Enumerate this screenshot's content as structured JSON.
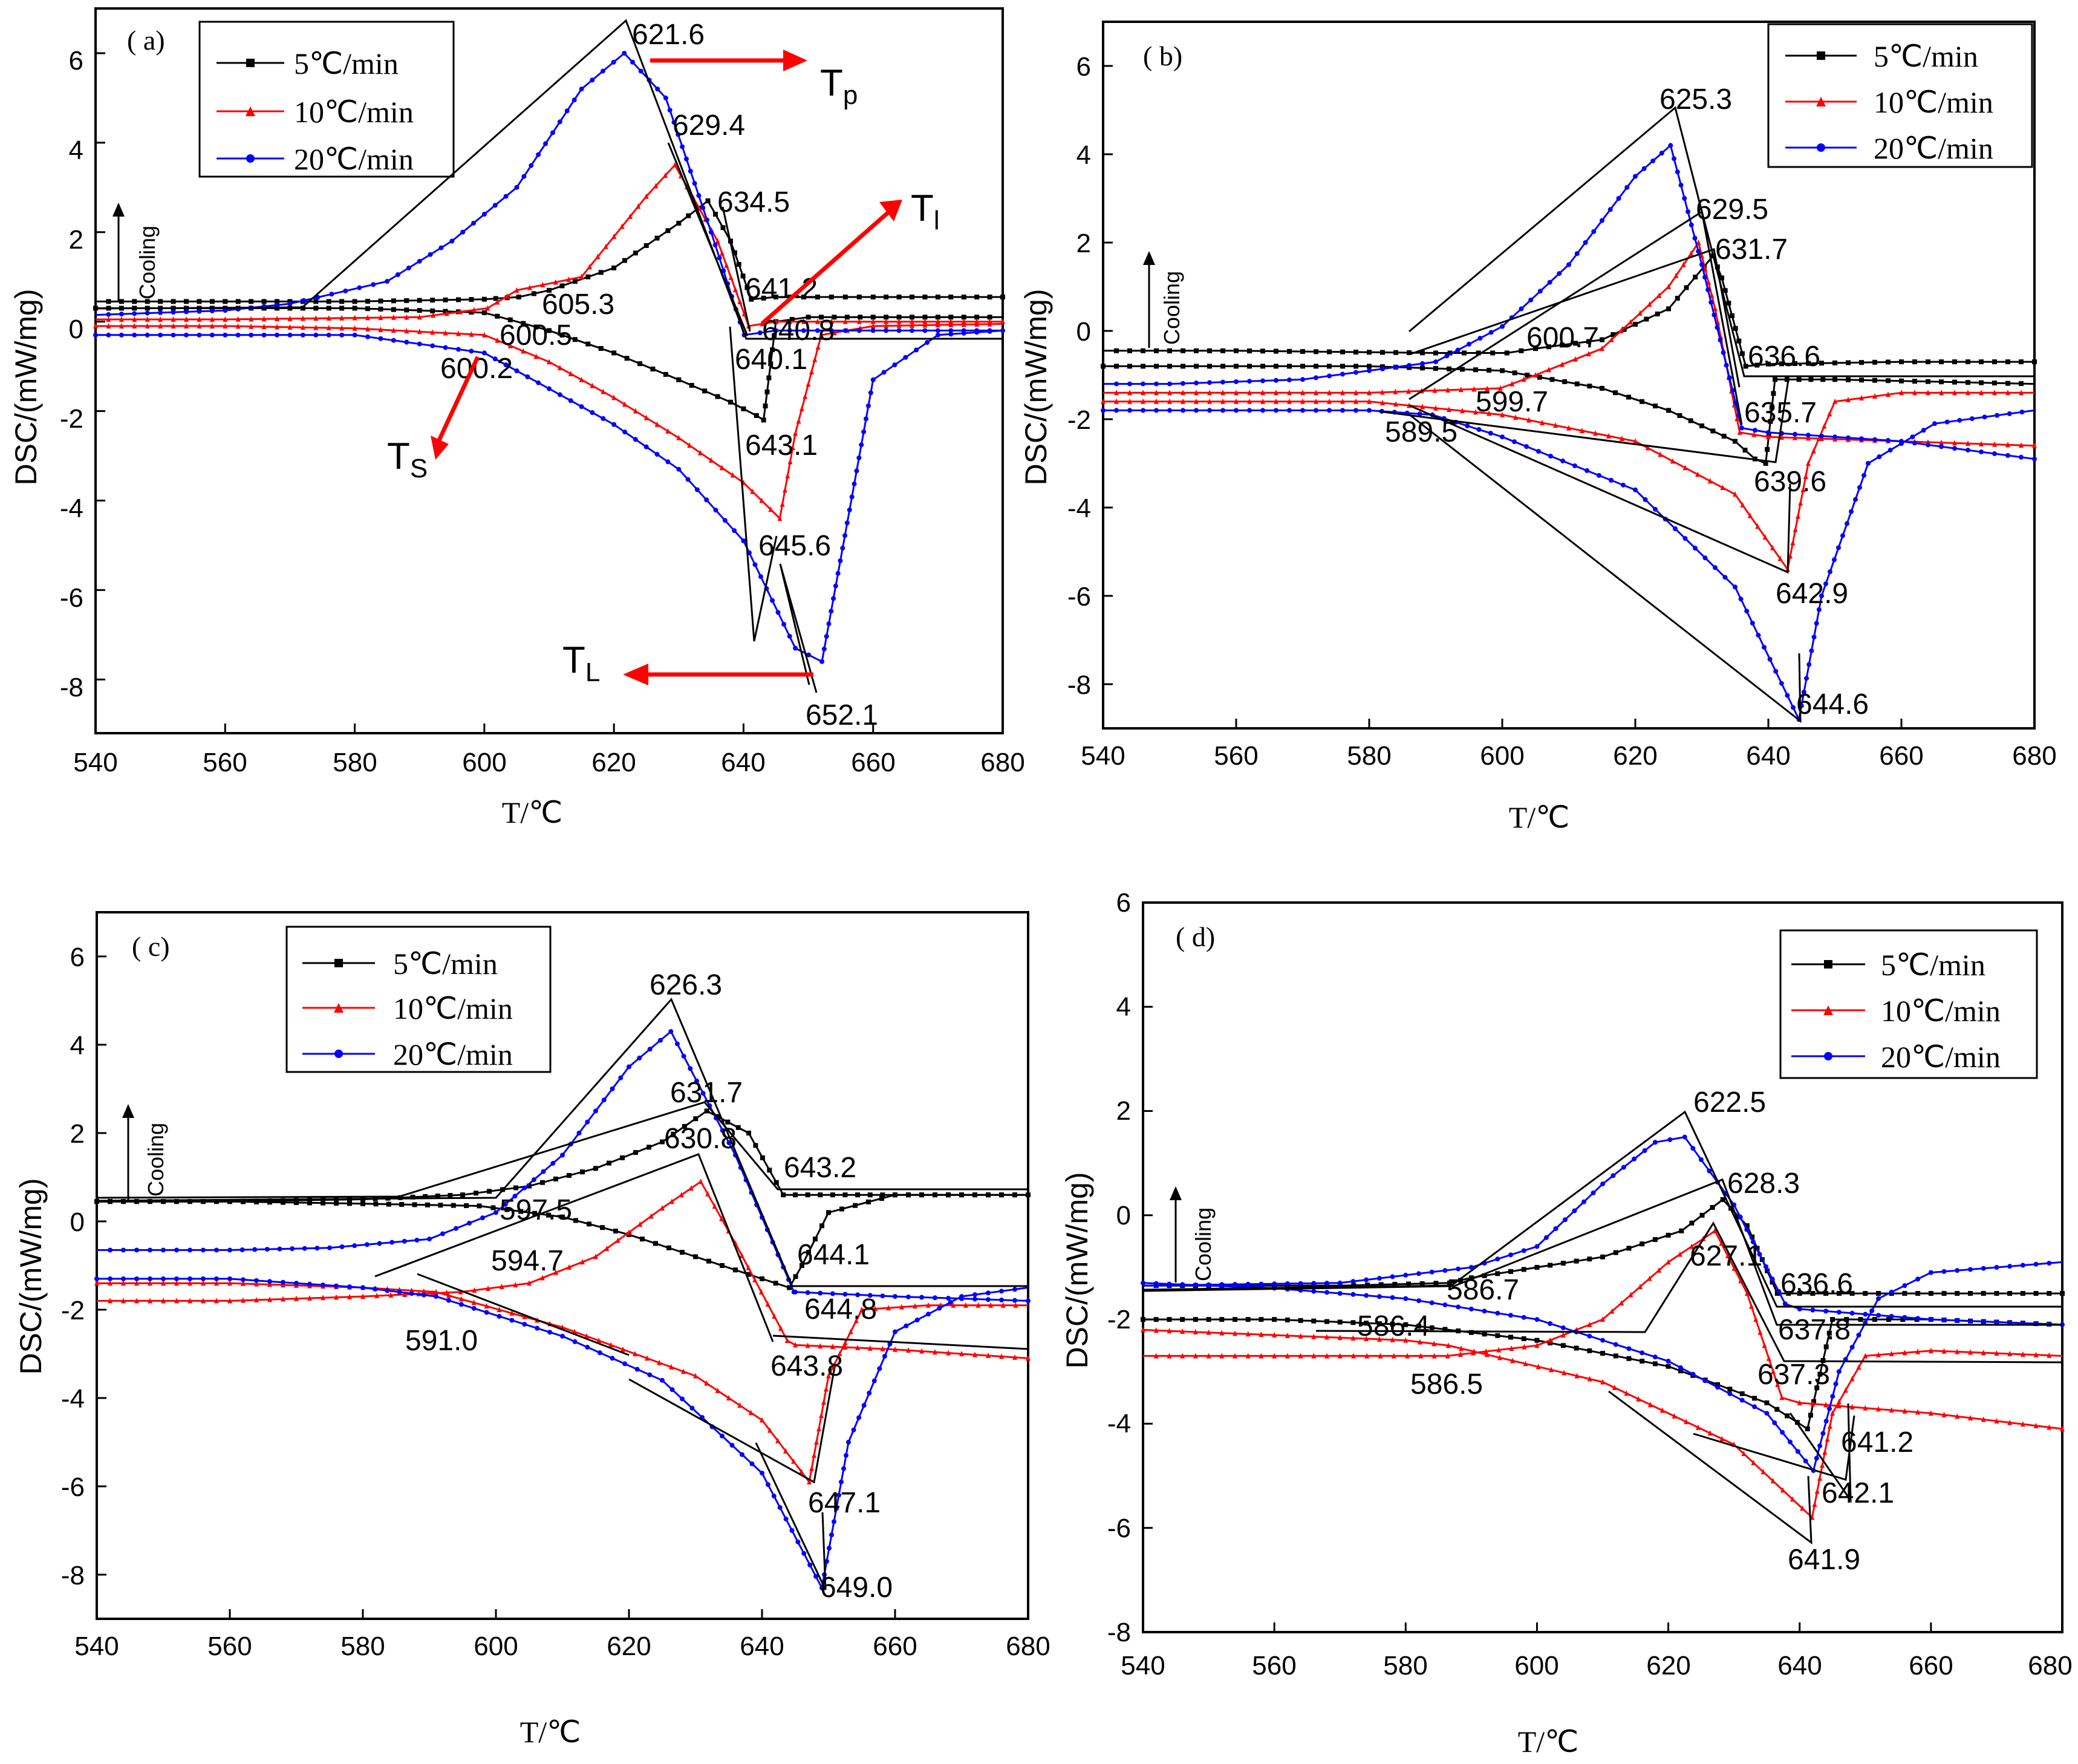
{
  "chart_data": [
    {
      "type": "line",
      "panel_label": "( a)",
      "xlabel": "T/℃",
      "ylabel": "DSC/(mW/mg)",
      "xlim": [
        540,
        680
      ],
      "ylim": [
        -9.2,
        7.0
      ],
      "xticks": [
        540,
        560,
        580,
        600,
        620,
        640,
        660,
        "680"
      ],
      "yticks": [
        -8,
        -6,
        -4,
        -2,
        0,
        2,
        4,
        6
      ],
      "cooling_label": "Cooling",
      "legend": {
        "position": "top-left-inside",
        "entries": [
          "5℃/min",
          "10℃/min",
          "20℃/min"
        ]
      },
      "series": [
        {
          "name": "5℃/min",
          "color": "#000000",
          "marker": "square",
          "heating": {
            "x": [
              540,
              560,
              580,
              600,
              610,
              620,
              630,
              638,
              642,
              643.1,
              645,
              650,
              660,
              680
            ],
            "y": [
              0.3,
              0.3,
              0.3,
              0.2,
              -0.2,
              -0.7,
              -1.3,
              -1.8,
              -2.1,
              -2.2,
              0,
              0.1,
              0.1,
              0.1
            ]
          },
          "cooling": {
            "x": [
              680,
              660,
              645,
              641.2,
              638,
              634.5,
              630,
              620,
              610,
              605.3,
              600,
              580,
              560,
              540
            ],
            "y": [
              0.55,
              0.55,
              0.55,
              0.5,
              1.8,
              2.7,
              2.2,
              1.2,
              0.7,
              0.55,
              0.5,
              0.45,
              0.45,
              0.45
            ]
          }
        },
        {
          "name": "10℃/min",
          "color": "#ff0000",
          "marker": "triangle",
          "heating": {
            "x": [
              540,
              560,
              580,
              600,
              610,
              620,
              630,
              640,
              645.6,
              648,
              652,
              660,
              680
            ],
            "y": [
              -0.1,
              -0.1,
              -0.15,
              -0.3,
              -0.9,
              -1.7,
              -2.6,
              -3.6,
              -4.4,
              -2.5,
              -0.3,
              -0.1,
              -0.05
            ]
          },
          "cooling": {
            "x": [
              680,
              660,
              645,
              640.8,
              636,
              629.4,
              625,
              615,
              605,
              600.5,
              590,
              560,
              540
            ],
            "y": [
              0.0,
              0.0,
              0.0,
              -0.1,
              1.8,
              3.5,
              2.8,
              1.0,
              0.7,
              0.3,
              0.1,
              0.05,
              0.05
            ]
          }
        },
        {
          "name": "20℃/min",
          "color": "#0000ff",
          "marker": "circle",
          "heating": {
            "x": [
              540,
              560,
              580,
              600,
              610,
              620,
              630,
              640,
              648,
              652.1,
              656,
              660,
              670,
              680
            ],
            "y": [
              -0.3,
              -0.3,
              -0.3,
              -0.7,
              -1.5,
              -2.3,
              -3.3,
              -4.9,
              -7.3,
              -7.6,
              -4.5,
              -1.3,
              -0.3,
              -0.2
            ]
          },
          "cooling": {
            "x": [
              680,
              660,
              645,
              640.1,
              635,
              628,
              621.6,
              615,
              605,
              595,
              585,
              570,
              560,
              550,
              540
            ],
            "y": [
              -0.2,
              -0.2,
              -0.2,
              -0.3,
              2.0,
              5.0,
              6.0,
              5.2,
              3.0,
              1.8,
              0.9,
              0.4,
              0.25,
              0.2,
              0.15
            ]
          }
        }
      ],
      "annotations": [
        "621.6",
        "629.4",
        "634.5",
        "641.2",
        "640.8",
        "640.1",
        "605.3",
        "600.5",
        "600.2",
        "643.1",
        "645.6",
        "652.1"
      ],
      "markers": {
        "tp": "T",
        "tp_sub": "p",
        "tl_upper": "T",
        "tl_upper_sub": "l",
        "ts": "T",
        "ts_sub": "S",
        "tl": "T",
        "tl_sub": "L"
      }
    },
    {
      "type": "line",
      "panel_label": "( b)",
      "xlabel": "T/℃",
      "ylabel": "DSC/(mW/mg)",
      "xlim": [
        540,
        680
      ],
      "ylim": [
        -9.0,
        7.0
      ],
      "xticks": [
        540,
        560,
        580,
        600,
        620,
        640,
        660,
        "680"
      ],
      "yticks": [
        -8,
        -6,
        -4,
        -2,
        0,
        2,
        4,
        6
      ],
      "cooling_label": "Cooling",
      "legend": {
        "position": "top-right-inside",
        "entries": [
          "5℃/min",
          "10℃/min",
          "20℃/min"
        ]
      },
      "series": [
        {
          "name": "5℃/min",
          "color": "#000000",
          "marker": "square",
          "heating": {
            "x": [
              540,
              560,
              580,
              600,
              615,
              625,
              635,
              638,
              639.6,
              641,
              650,
              680
            ],
            "y": [
              -0.8,
              -0.8,
              -0.8,
              -0.9,
              -1.3,
              -1.8,
              -2.5,
              -2.9,
              -3.0,
              -1.1,
              -1.1,
              -1.2
            ]
          },
          "cooling": {
            "x": [
              680,
              660,
              640,
              636.6,
              633,
              631.7,
              625,
              615,
              605,
              600.7,
              590,
              560,
              540
            ],
            "y": [
              -0.7,
              -0.7,
              -0.75,
              -0.8,
              1.2,
              1.7,
              0.5,
              -0.2,
              -0.4,
              -0.5,
              -0.5,
              -0.45,
              -0.45
            ]
          }
        },
        {
          "name": "10℃/min",
          "color": "#ff0000",
          "marker": "triangle",
          "heating": {
            "x": [
              540,
              560,
              580,
              600,
              620,
              635,
              642.9,
              646,
              650,
              660,
              680
            ],
            "y": [
              -1.6,
              -1.6,
              -1.6,
              -1.9,
              -2.5,
              -3.7,
              -5.4,
              -3.0,
              -1.6,
              -1.4,
              -1.4
            ]
          },
          "cooling": {
            "x": [
              680,
              660,
              640,
              635.7,
              632,
              629.5,
              625,
              615,
              605,
              599.7,
              580,
              560,
              540
            ],
            "y": [
              -2.6,
              -2.5,
              -2.4,
              -2.3,
              0.5,
              2.0,
              1.0,
              -0.4,
              -1.0,
              -1.3,
              -1.4,
              -1.4,
              -1.4
            ]
          }
        },
        {
          "name": "20℃/min",
          "color": "#0000ff",
          "marker": "circle",
          "heating": {
            "x": [
              540,
              560,
              580,
              589.5,
              600,
              620,
              635,
              644.6,
              648,
              655,
              665,
              680
            ],
            "y": [
              -1.8,
              -1.8,
              -1.8,
              -1.9,
              -2.4,
              -3.6,
              -5.8,
              -8.8,
              -6.0,
              -3.0,
              -2.1,
              -1.8
            ]
          },
          "cooling": {
            "x": [
              680,
              660,
              640,
              636,
              630,
              625.3,
              620,
              610,
              600,
              590,
              570,
              550,
              540
            ],
            "y": [
              -2.9,
              -2.5,
              -2.3,
              -2.2,
              1.5,
              4.2,
              3.5,
              1.5,
              0.1,
              -0.7,
              -1.1,
              -1.2,
              -1.2
            ]
          }
        }
      ],
      "annotations": [
        "625.3",
        "629.5",
        "631.7",
        "636.6",
        "600.7",
        "599.7",
        "589.5",
        "635.7",
        "639.6",
        "642.9",
        "644.6"
      ]
    },
    {
      "type": "line",
      "panel_label": "( c)",
      "xlabel": "T/℃",
      "ylabel": "DSC/(mW/mg)",
      "xlim": [
        540,
        680
      ],
      "ylim": [
        -9.0,
        7.0
      ],
      "xticks": [
        540,
        560,
        580,
        600,
        620,
        640,
        660,
        "680"
      ],
      "yticks": [
        -8,
        -6,
        -4,
        -2,
        0,
        2,
        4,
        6
      ],
      "cooling_label": "Cooling",
      "legend": {
        "position": "top-center-inside",
        "entries": [
          "5℃/min",
          "10℃/min",
          "20℃/min"
        ]
      },
      "series": [
        {
          "name": "5℃/min",
          "color": "#000000",
          "marker": "square",
          "heating": {
            "x": [
              540,
              560,
              580,
              597.5,
              610,
              620,
              630,
              640,
              644.1,
              646,
              650,
              660,
              680
            ],
            "y": [
              0.45,
              0.45,
              0.4,
              0.35,
              0.1,
              -0.3,
              -0.8,
              -1.3,
              -1.5,
              -1.0,
              0.2,
              0.6,
              0.6
            ]
          },
          "cooling": {
            "x": [
              680,
              660,
              645,
              643.2,
              638,
              631.7,
              625,
              615,
              605,
              595,
              580,
              560,
              540
            ],
            "y": [
              0.6,
              0.6,
              0.6,
              0.6,
              2.0,
              2.5,
              1.8,
              1.2,
              0.8,
              0.6,
              0.5,
              0.45,
              0.45
            ]
          }
        },
        {
          "name": "10℃/min",
          "color": "#ff0000",
          "marker": "triangle",
          "heating": {
            "x": [
              540,
              560,
              580,
              591,
              610,
              630,
              640,
              647.1,
              650,
              655,
              665,
              680
            ],
            "y": [
              -1.4,
              -1.4,
              -1.5,
              -1.6,
              -2.4,
              -3.5,
              -4.5,
              -5.9,
              -3.5,
              -2.0,
              -1.9,
              -1.9
            ]
          },
          "cooling": {
            "x": [
              680,
              660,
              645,
              643.8,
              636,
              630.8,
              625,
              615,
              605,
              594.7,
              580,
              560,
              540
            ],
            "y": [
              -3.1,
              -2.9,
              -2.8,
              -2.7,
              -0.5,
              0.9,
              0.3,
              -0.8,
              -1.4,
              -1.6,
              -1.7,
              -1.8,
              -1.8
            ]
          }
        },
        {
          "name": "20℃/min",
          "color": "#0000ff",
          "marker": "circle",
          "heating": {
            "x": [
              540,
              560,
              580,
              591,
              610,
              625,
              640,
              649,
              653,
              660,
              670,
              680
            ],
            "y": [
              -1.3,
              -1.3,
              -1.5,
              -1.7,
              -2.6,
              -3.6,
              -5.7,
              -8.3,
              -5.0,
              -2.5,
              -1.7,
              -1.5
            ]
          },
          "cooling": {
            "x": [
              680,
              660,
              645,
              644.8,
              636,
              626.3,
              620,
              610,
              600,
              590,
              575,
              560,
              540
            ],
            "y": [
              -1.8,
              -1.7,
              -1.6,
              -1.6,
              1.5,
              4.3,
              3.5,
              1.5,
              0.2,
              -0.4,
              -0.6,
              -0.65,
              -0.65
            ]
          }
        }
      ],
      "annotations": [
        "626.3",
        "631.7",
        "630.8",
        "643.2",
        "597.5",
        "594.7",
        "591.0",
        "644.1",
        "644.8",
        "643.8",
        "647.1",
        "649.0"
      ]
    },
    {
      "type": "line",
      "panel_label": "( d)",
      "xlabel": "T/℃",
      "ylabel": "DSC/(mW/mg)",
      "xlim": [
        540,
        680
      ],
      "ylim": [
        -8,
        6
      ],
      "xticks": [
        540,
        560,
        580,
        600,
        620,
        640,
        660,
        "680"
      ],
      "yticks": [
        -8,
        -6,
        -4,
        -2,
        0,
        2,
        4,
        6
      ],
      "cooling_label": "Cooling",
      "legend": {
        "position": "top-right-inside",
        "entries": [
          "5℃/min",
          "10℃/min",
          "20℃/min"
        ]
      },
      "series": [
        {
          "name": "5℃/min",
          "color": "#000000",
          "marker": "square",
          "heating": {
            "x": [
              540,
              560,
              580,
              600,
              620,
              635,
              641.2,
              645,
              660,
              680
            ],
            "y": [
              -2.0,
              -2.0,
              -2.1,
              -2.4,
              -2.9,
              -3.6,
              -4.1,
              -2.0,
              -2.0,
              -2.1
            ]
          },
          "cooling": {
            "x": [
              680,
              660,
              640,
              636.6,
              632,
              628.3,
              622,
              610,
              600,
              590,
              586.7,
              570,
              540
            ],
            "y": [
              -1.5,
              -1.5,
              -1.5,
              -1.5,
              -0.2,
              0.3,
              -0.3,
              -0.8,
              -1.0,
              -1.2,
              -1.3,
              -1.35,
              -1.35
            ]
          }
        },
        {
          "name": "10℃/min",
          "color": "#ff0000",
          "marker": "triangle",
          "heating": {
            "x": [
              540,
              560,
              580,
              586.5,
              610,
              630,
              641.9,
              645,
              650,
              660,
              680
            ],
            "y": [
              -2.2,
              -2.3,
              -2.4,
              -2.5,
              -3.2,
              -4.4,
              -5.8,
              -3.8,
              -2.7,
              -2.6,
              -2.7
            ]
          },
          "cooling": {
            "x": [
              680,
              660,
              640,
              637.3,
              632,
              627.1,
              620,
              610,
              600,
              586.4,
              570,
              540
            ],
            "y": [
              -4.1,
              -3.8,
              -3.6,
              -3.5,
              -1.5,
              -0.3,
              -0.9,
              -2.0,
              -2.5,
              -2.7,
              -2.7,
              -2.7
            ]
          }
        },
        {
          "name": "20℃/min",
          "color": "#0000ff",
          "marker": "circle",
          "heating": {
            "x": [
              540,
              560,
              580,
              600,
              620,
              635,
              642.1,
              646,
              652,
              660,
              680
            ],
            "y": [
              -1.3,
              -1.4,
              -1.6,
              -2.0,
              -2.8,
              -3.8,
              -4.9,
              -3.0,
              -1.6,
              -1.1,
              -0.9
            ]
          },
          "cooling": {
            "x": [
              680,
              660,
              640,
              637.8,
              630,
              622.5,
              618,
              610,
              600,
              590,
              570,
              540
            ],
            "y": [
              -2.1,
              -2.0,
              -1.8,
              -1.7,
              0.2,
              1.5,
              1.4,
              0.6,
              -0.6,
              -1.0,
              -1.3,
              -1.35
            ]
          }
        }
      ],
      "annotations": [
        "622.5",
        "628.3",
        "627.1",
        "636.6",
        "637.8",
        "637.3",
        "586.7",
        "586.4",
        "586.5",
        "641.2",
        "642.1",
        "641.9"
      ]
    }
  ]
}
